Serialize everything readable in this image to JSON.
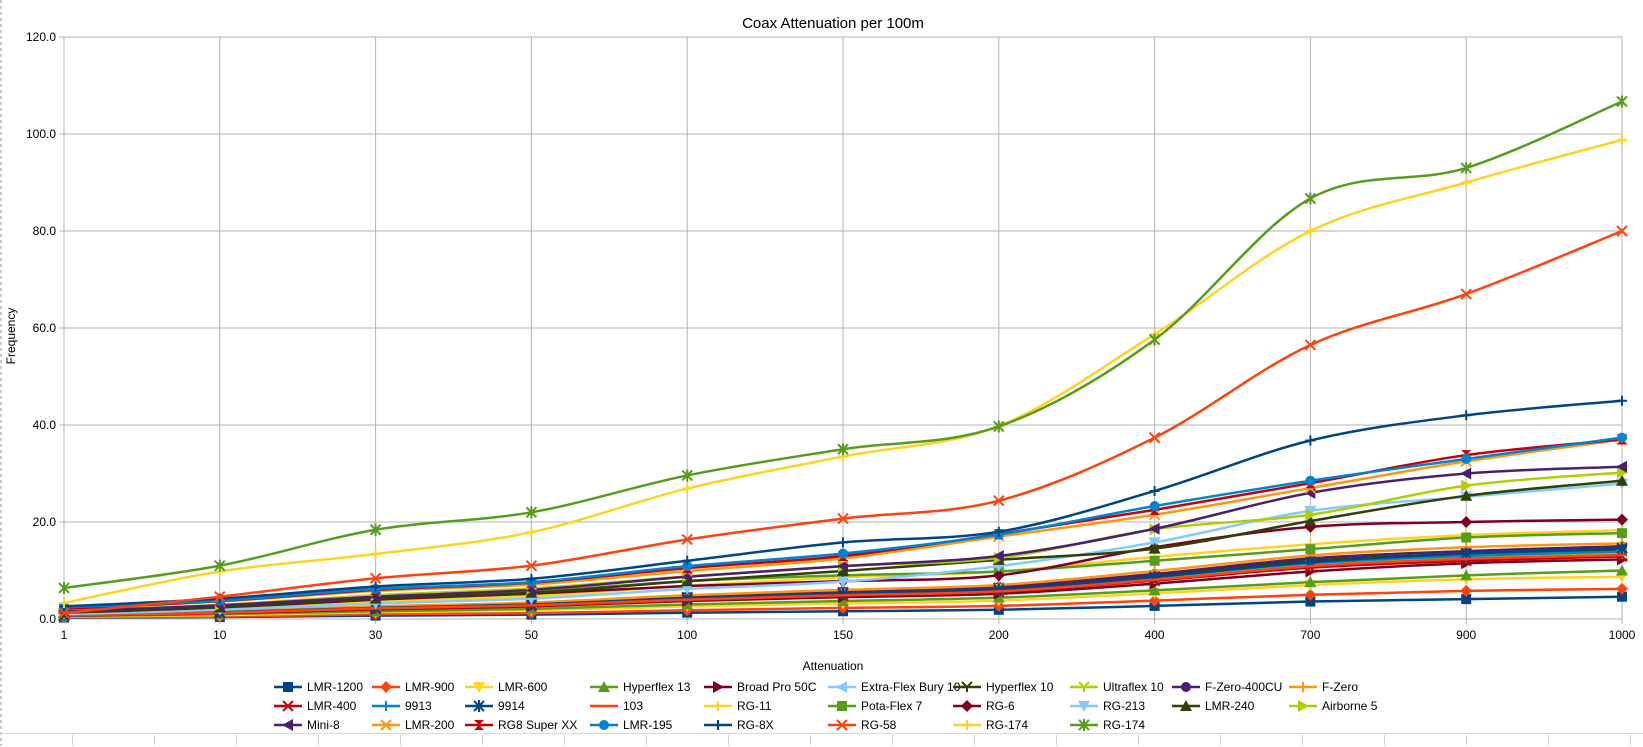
{
  "chart_data": {
    "type": "line",
    "title": "Coax Attenuation per 100m",
    "xlabel": "Attenuation",
    "ylabel": "Frequency",
    "categories": [
      "1",
      "10",
      "30",
      "50",
      "100",
      "150",
      "200",
      "400",
      "700",
      "900",
      "1000"
    ],
    "ylim": [
      0,
      120
    ],
    "yticks": [
      "0.0",
      "20.0",
      "40.0",
      "60.0",
      "80.0",
      "100.0",
      "120.0"
    ],
    "grid": true,
    "legend_position": "bottom",
    "series": [
      {
        "name": "LMR-1200",
        "color": "#004586",
        "marker": "square",
        "values": [
          0.3,
          0.4,
          0.7,
          0.9,
          1.3,
          1.6,
          1.9,
          2.7,
          3.6,
          4.1,
          4.6
        ]
      },
      {
        "name": "LMR-900",
        "color": "#ff420e",
        "marker": "diamond",
        "values": [
          0.4,
          0.5,
          1.0,
          1.2,
          1.8,
          2.3,
          2.7,
          3.8,
          5.0,
          5.8,
          6.2
        ]
      },
      {
        "name": "LMR-600",
        "color": "#ffd320",
        "marker": "triangle-down",
        "values": [
          0.5,
          0.8,
          1.4,
          1.8,
          2.6,
          3.2,
          3.8,
          5.3,
          7.0,
          8.2,
          8.7
        ]
      },
      {
        "name": "Hyperflex 13",
        "color": "#579d1c",
        "marker": "triangle-up",
        "values": [
          0.6,
          1.0,
          1.6,
          2.1,
          3.0,
          3.7,
          4.4,
          5.9,
          7.6,
          9.0,
          10.0
        ]
      },
      {
        "name": "Broad Pro 50C",
        "color": "#7e0021",
        "marker": "triangle-right",
        "values": [
          0.8,
          1.2,
          2.0,
          2.6,
          3.7,
          4.5,
          5.2,
          7.3,
          9.8,
          11.5,
          12.3
        ]
      },
      {
        "name": "Extra-Flex Bury 10",
        "color": "#83caff",
        "marker": "triangle-left",
        "values": [
          0.9,
          1.4,
          2.3,
          3.0,
          4.3,
          5.3,
          6.1,
          8.6,
          11.4,
          13.0,
          13.8
        ]
      },
      {
        "name": "Hyperflex 10",
        "color": "#314004",
        "marker": "cross",
        "values": [
          0.9,
          1.5,
          2.4,
          3.1,
          4.5,
          5.5,
          6.4,
          9.0,
          12.0,
          13.5,
          14.3
        ]
      },
      {
        "name": "Ultraflex 10",
        "color": "#aecf00",
        "marker": "cross",
        "values": [
          0.8,
          1.3,
          2.2,
          2.9,
          4.1,
          5.1,
          5.9,
          8.3,
          11.0,
          12.6,
          13.4
        ]
      },
      {
        "name": "F-Zero-400CU",
        "color": "#4b1f6f",
        "marker": "circle",
        "values": [
          0.9,
          1.5,
          2.5,
          3.2,
          4.6,
          5.7,
          6.6,
          9.3,
          12.5,
          14.0,
          15.0
        ]
      },
      {
        "name": "F-Zero",
        "color": "#ff950e",
        "marker": "plus",
        "values": [
          1.0,
          1.6,
          2.6,
          3.4,
          4.9,
          6.0,
          7.0,
          9.9,
          13.1,
          14.8,
          15.6
        ]
      },
      {
        "name": "LMR-400",
        "color": "#c5000b",
        "marker": "x",
        "values": [
          0.7,
          1.2,
          2.1,
          2.7,
          3.9,
          4.8,
          5.6,
          7.9,
          10.6,
          12.0,
          12.9
        ]
      },
      {
        "name": "9913",
        "color": "#0084d1",
        "marker": "plus",
        "values": [
          0.8,
          1.3,
          2.2,
          2.9,
          4.2,
          5.2,
          6.0,
          8.6,
          11.5,
          13.0,
          13.9
        ]
      },
      {
        "name": "9914",
        "color": "#004586",
        "marker": "asterisk",
        "values": [
          0.8,
          1.4,
          2.3,
          3.0,
          4.3,
          5.3,
          6.1,
          8.7,
          11.7,
          13.5,
          14.6
        ]
      },
      {
        "name": "103",
        "color": "#ff420e",
        "marker": "dash",
        "values": [
          0.8,
          1.3,
          2.2,
          2.8,
          4.0,
          4.9,
          5.7,
          8.1,
          10.9,
          12.4,
          13.2
        ]
      },
      {
        "name": "RG-11",
        "color": "#ffd320",
        "marker": "plus",
        "values": [
          1.3,
          2.2,
          3.6,
          4.7,
          6.9,
          8.6,
          9.8,
          12.8,
          15.4,
          17.3,
          18.3
        ]
      },
      {
        "name": "Pota-Flex 7",
        "color": "#579d1c",
        "marker": "square",
        "values": [
          1.5,
          2.6,
          4.3,
          5.6,
          7.8,
          9.0,
          9.8,
          12.0,
          14.4,
          16.8,
          17.7
        ]
      },
      {
        "name": "RG-6",
        "color": "#7e0021",
        "marker": "diamond",
        "values": [
          1.2,
          2.3,
          4.0,
          5.2,
          6.8,
          7.8,
          9.0,
          14.8,
          19.0,
          20.0,
          20.5
        ]
      },
      {
        "name": "RG-213",
        "color": "#83caff",
        "marker": "triangle-down",
        "values": [
          1.0,
          1.9,
          3.2,
          4.2,
          6.2,
          7.7,
          10.9,
          15.8,
          22.3,
          25.2,
          27.9
        ]
      },
      {
        "name": "LMR-240",
        "color": "#314004",
        "marker": "triangle-up",
        "values": [
          1.3,
          2.4,
          4.2,
          5.4,
          7.8,
          9.9,
          12.2,
          14.5,
          20.2,
          25.4,
          28.5
        ]
      },
      {
        "name": "Airborne 5",
        "color": "#aecf00",
        "marker": "triangle-right",
        "values": [
          1.7,
          2.9,
          4.9,
          6.3,
          8.8,
          10.9,
          12.6,
          18.5,
          21.5,
          27.5,
          30.2
        ]
      },
      {
        "name": "Mini-8",
        "color": "#4b1f6f",
        "marker": "triangle-left",
        "values": [
          1.6,
          2.8,
          4.6,
          6.0,
          8.7,
          10.9,
          13.0,
          18.6,
          26.0,
          30.0,
          31.4
        ]
      },
      {
        "name": "LMR-200",
        "color": "#ff950e",
        "marker": "x",
        "values": [
          2.0,
          3.6,
          5.8,
          7.1,
          9.9,
          12.5,
          17.0,
          21.5,
          27.0,
          32.5,
          37.0
        ]
      },
      {
        "name": "RG8 Super XX",
        "color": "#c5000b",
        "marker": "hourglass",
        "values": [
          2.1,
          3.7,
          6.0,
          7.5,
          10.5,
          13.0,
          17.5,
          22.5,
          28.0,
          33.8,
          37.0
        ]
      },
      {
        "name": "LMR-195",
        "color": "#0084d1",
        "marker": "circle",
        "values": [
          2.4,
          3.8,
          6.2,
          7.6,
          10.9,
          13.5,
          17.4,
          23.3,
          28.5,
          33.0,
          37.4
        ]
      },
      {
        "name": "RG-8X",
        "color": "#004586",
        "marker": "plus",
        "values": [
          2.6,
          4.2,
          6.7,
          8.3,
          12.0,
          15.8,
          18.0,
          26.4,
          36.8,
          42.0,
          45.0
        ]
      },
      {
        "name": "RG-58",
        "color": "#ff420e",
        "marker": "x",
        "values": [
          1.2,
          4.6,
          8.4,
          11.0,
          16.4,
          20.7,
          24.4,
          37.4,
          56.5,
          67.0,
          80.0
        ]
      },
      {
        "name": "RG-174",
        "color": "#ffd320",
        "marker": "plus",
        "values": [
          3.3,
          9.8,
          13.4,
          17.9,
          26.9,
          33.5,
          39.8,
          58.7,
          80.0,
          90.0,
          98.8
        ]
      },
      {
        "name": "RG-174",
        "color": "#579d1c",
        "marker": "asterisk",
        "values": [
          6.4,
          11.0,
          18.4,
          22.0,
          29.6,
          35.0,
          39.7,
          57.6,
          86.7,
          93.0,
          106.7
        ]
      }
    ]
  }
}
